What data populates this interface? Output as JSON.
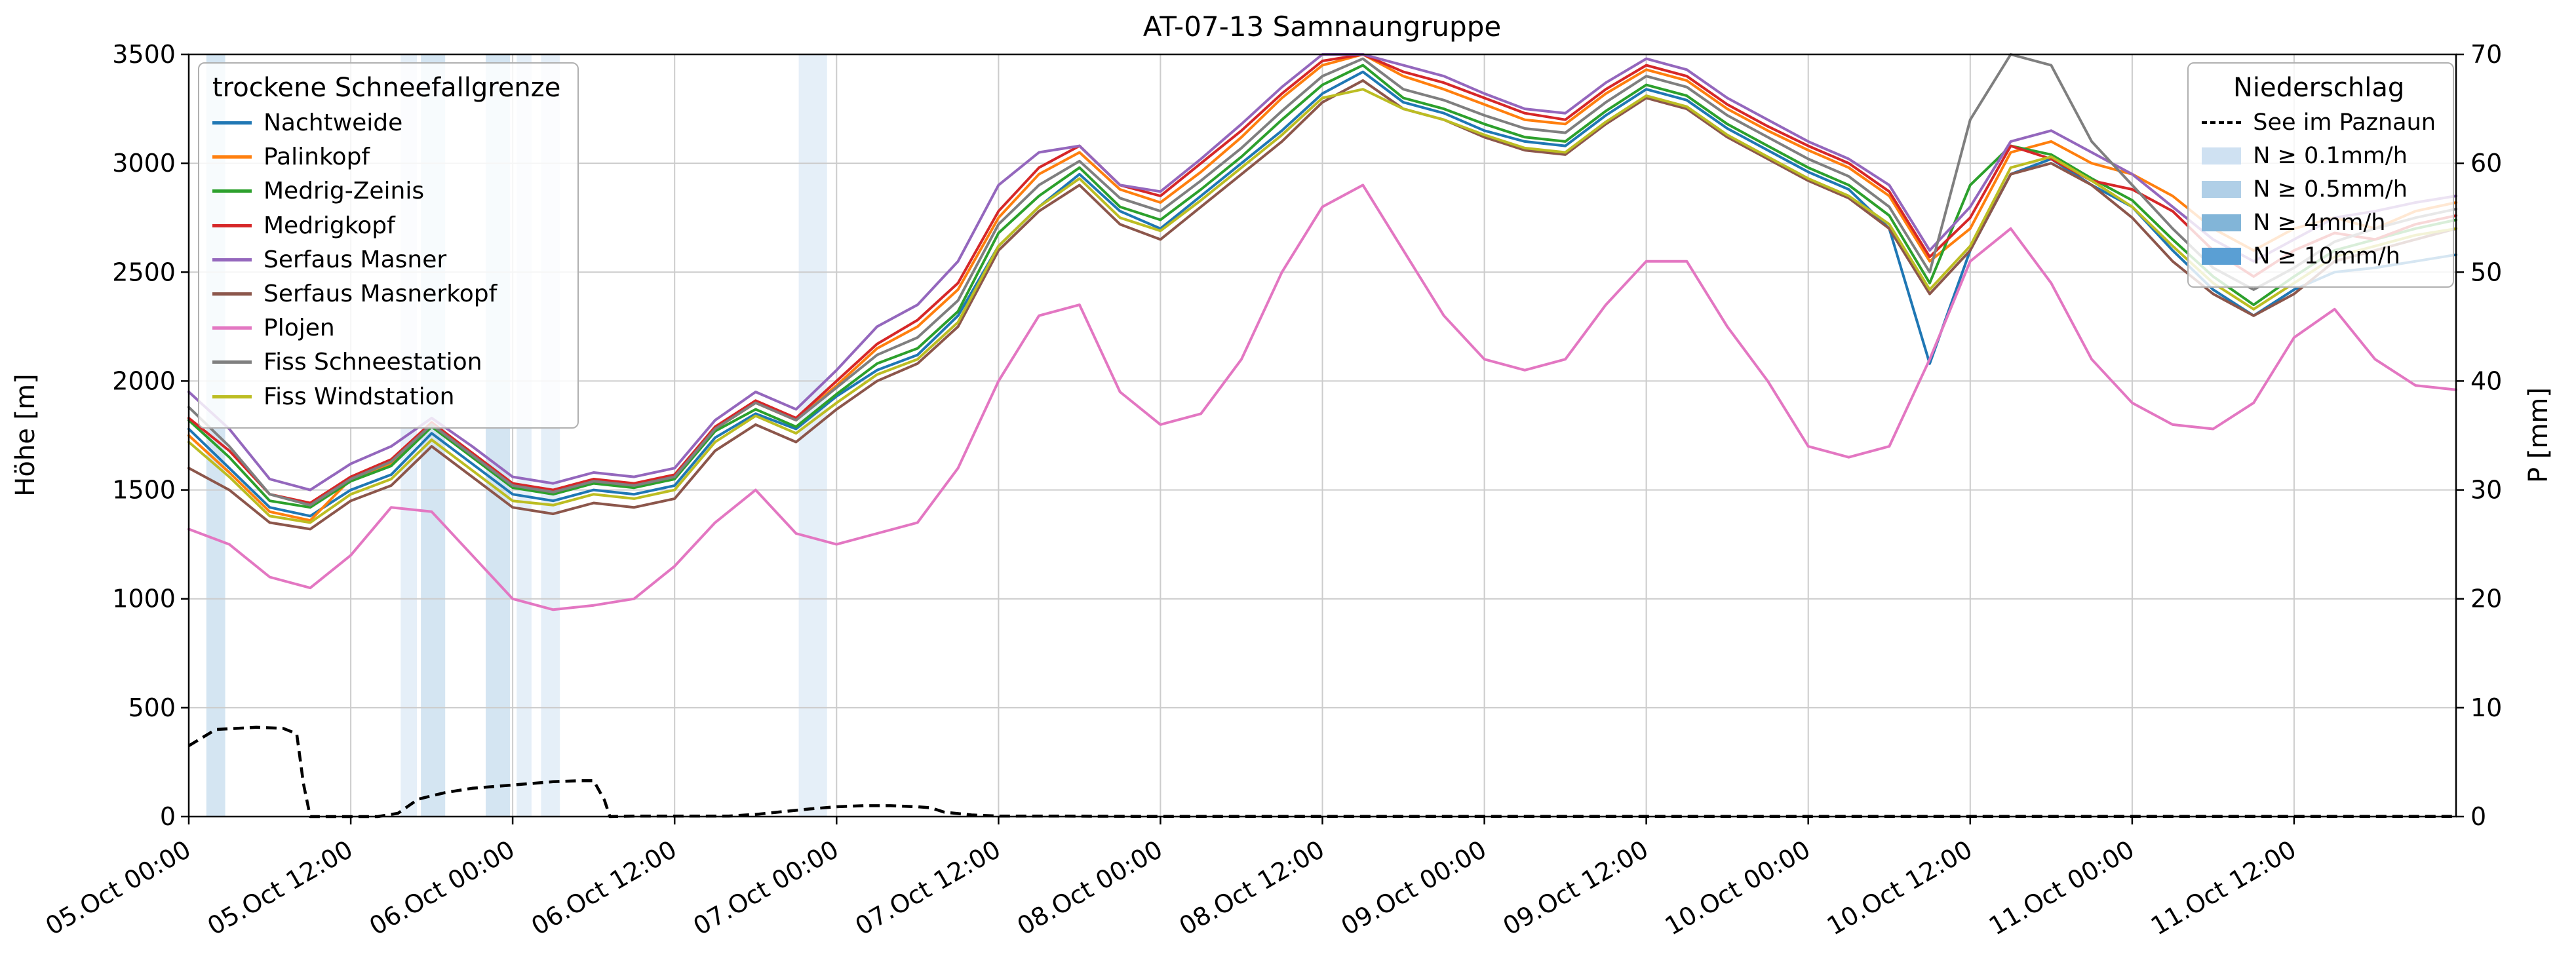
{
  "chart_data": {
    "type": "line",
    "title": "AT-07-13 Samnaungruppe",
    "xlabel": "",
    "ylabel_left": "Höhe [m]",
    "ylabel_right": "P [mm]",
    "ylim_left": [
      0,
      3500
    ],
    "ylim_right": [
      0,
      70
    ],
    "xlim_hours": [
      0,
      168
    ],
    "grid": true,
    "legend_left_title": "trockene Schneefallgrenze",
    "legend_right_title": "Niederschlag",
    "x_ticks": [
      {
        "hour": 0,
        "label": "05.Oct 00:00"
      },
      {
        "hour": 12,
        "label": "05.Oct 12:00"
      },
      {
        "hour": 24,
        "label": "06.Oct 00:00"
      },
      {
        "hour": 36,
        "label": "06.Oct 12:00"
      },
      {
        "hour": 48,
        "label": "07.Oct 00:00"
      },
      {
        "hour": 60,
        "label": "07.Oct 12:00"
      },
      {
        "hour": 72,
        "label": "08.Oct 00:00"
      },
      {
        "hour": 84,
        "label": "08.Oct 12:00"
      },
      {
        "hour": 96,
        "label": "09.Oct 00:00"
      },
      {
        "hour": 108,
        "label": "09.Oct 12:00"
      },
      {
        "hour": 120,
        "label": "10.Oct 00:00"
      },
      {
        "hour": 132,
        "label": "10.Oct 12:00"
      },
      {
        "hour": 144,
        "label": "11.Oct 00:00"
      },
      {
        "hour": 156,
        "label": "11.Oct 12:00"
      }
    ],
    "y_ticks_left": [
      0,
      500,
      1000,
      1500,
      2000,
      2500,
      3000,
      3500
    ],
    "y_ticks_right": [
      0,
      10,
      20,
      30,
      40,
      50,
      60,
      70
    ],
    "sample_step_hours": 3,
    "series": [
      {
        "name": "Nachtweide",
        "color": "#1f77b4",
        "values": [
          1780,
          1600,
          1420,
          1380,
          1500,
          1570,
          1760,
          1620,
          1480,
          1450,
          1500,
          1480,
          1520,
          1740,
          1850,
          1780,
          1930,
          2050,
          2120,
          2300,
          2620,
          2800,
          2950,
          2780,
          2700,
          2850,
          3000,
          3150,
          3320,
          3420,
          3280,
          3230,
          3150,
          3100,
          3080,
          3220,
          3340,
          3290,
          3160,
          3060,
          2960,
          2880,
          2700,
          2080,
          2600,
          2950,
          3020,
          2900,
          2800,
          2600,
          2420,
          2300,
          2420,
          2500,
          2520,
          2550,
          2580
        ]
      },
      {
        "name": "Palinkopf",
        "color": "#ff7f0e",
        "values": [
          1750,
          1580,
          1400,
          1360,
          1550,
          1620,
          1800,
          1660,
          1520,
          1490,
          1540,
          1520,
          1560,
          1780,
          1900,
          1820,
          1980,
          2150,
          2250,
          2420,
          2750,
          2950,
          3050,
          2880,
          2820,
          2960,
          3120,
          3300,
          3450,
          3500,
          3400,
          3340,
          3270,
          3200,
          3180,
          3320,
          3430,
          3380,
          3250,
          3150,
          3060,
          2980,
          2850,
          2550,
          2700,
          3050,
          3100,
          3000,
          2950,
          2850,
          2700,
          2600,
          2700,
          2750,
          2700,
          2780,
          2820
        ]
      },
      {
        "name": "Medrig-Zeinis",
        "color": "#2ca02c",
        "values": [
          1820,
          1650,
          1450,
          1420,
          1540,
          1610,
          1790,
          1650,
          1510,
          1480,
          1530,
          1510,
          1550,
          1770,
          1870,
          1790,
          1940,
          2080,
          2150,
          2320,
          2680,
          2850,
          2980,
          2800,
          2740,
          2880,
          3030,
          3200,
          3360,
          3450,
          3300,
          3250,
          3180,
          3120,
          3100,
          3240,
          3360,
          3310,
          3180,
          3080,
          2980,
          2900,
          2760,
          2450,
          2900,
          3080,
          3040,
          2930,
          2830,
          2650,
          2480,
          2350,
          2480,
          2600,
          2650,
          2700,
          2740
        ]
      },
      {
        "name": "Medrigkopf",
        "color": "#d62728",
        "values": [
          1830,
          1680,
          1480,
          1440,
          1560,
          1640,
          1810,
          1670,
          1530,
          1500,
          1550,
          1530,
          1570,
          1790,
          1910,
          1830,
          2000,
          2170,
          2280,
          2450,
          2780,
          2980,
          3080,
          2900,
          2850,
          3000,
          3150,
          3320,
          3470,
          3500,
          3420,
          3370,
          3300,
          3230,
          3200,
          3340,
          3450,
          3400,
          3270,
          3170,
          3080,
          3000,
          2870,
          2570,
          2750,
          3080,
          3020,
          2920,
          2880,
          2780,
          2600,
          2480,
          2600,
          2680,
          2650,
          2720,
          2760
        ]
      },
      {
        "name": "Serfaus Masner",
        "color": "#9467bd",
        "values": [
          1950,
          1780,
          1550,
          1500,
          1620,
          1700,
          1830,
          1700,
          1560,
          1530,
          1580,
          1560,
          1600,
          1820,
          1950,
          1870,
          2050,
          2250,
          2350,
          2550,
          2900,
          3050,
          3080,
          2900,
          2870,
          3020,
          3180,
          3350,
          3500,
          3500,
          3450,
          3400,
          3320,
          3250,
          3230,
          3370,
          3480,
          3430,
          3300,
          3200,
          3100,
          3020,
          2900,
          2600,
          2800,
          3100,
          3150,
          3050,
          2950,
          2800,
          2650,
          2550,
          2650,
          2750,
          2780,
          2820,
          2850
        ]
      },
      {
        "name": "Serfaus Masnerkopf",
        "color": "#8c564b",
        "values": [
          1600,
          1500,
          1350,
          1320,
          1450,
          1520,
          1700,
          1560,
          1420,
          1390,
          1440,
          1420,
          1460,
          1680,
          1800,
          1720,
          1870,
          2000,
          2080,
          2250,
          2600,
          2780,
          2900,
          2720,
          2650,
          2800,
          2950,
          3100,
          3280,
          3380,
          3250,
          3200,
          3120,
          3060,
          3040,
          3180,
          3300,
          3250,
          3120,
          3020,
          2920,
          2840,
          2700,
          2400,
          2600,
          2950,
          3000,
          2900,
          2750,
          2550,
          2400,
          2300,
          2400,
          2550,
          2600,
          2650,
          2700
        ]
      },
      {
        "name": "Plojen",
        "color": "#e377c2",
        "values": [
          1320,
          1250,
          1100,
          1050,
          1200,
          1420,
          1400,
          1200,
          1000,
          950,
          970,
          1000,
          1150,
          1350,
          1500,
          1300,
          1250,
          1300,
          1350,
          1600,
          2000,
          2300,
          2350,
          1950,
          1800,
          1850,
          2100,
          2500,
          2800,
          2900,
          2600,
          2300,
          2100,
          2050,
          2100,
          2350,
          2550,
          2550,
          2250,
          2000,
          1700,
          1650,
          1700,
          2100,
          2550,
          2700,
          2450,
          2100,
          1900,
          1800,
          1780,
          1900,
          2200,
          2330,
          2100,
          1980,
          1960
        ]
      },
      {
        "name": "Fiss Schneestation",
        "color": "#7f7f7f",
        "values": [
          1880,
          1700,
          1480,
          1430,
          1550,
          1630,
          1800,
          1660,
          1520,
          1490,
          1540,
          1520,
          1560,
          1780,
          1900,
          1820,
          1970,
          2120,
          2200,
          2370,
          2720,
          2900,
          3010,
          2840,
          2780,
          2920,
          3070,
          3240,
          3400,
          3480,
          3340,
          3290,
          3220,
          3160,
          3140,
          3280,
          3400,
          3350,
          3220,
          3120,
          3020,
          2940,
          2800,
          2500,
          3200,
          3500,
          3450,
          3100,
          2900,
          2700,
          2520,
          2420,
          2520,
          2640,
          2700,
          2750,
          2790
        ]
      },
      {
        "name": "Fiss Windstation",
        "color": "#bcbd22",
        "values": [
          1720,
          1560,
          1380,
          1350,
          1480,
          1550,
          1730,
          1590,
          1450,
          1430,
          1480,
          1460,
          1500,
          1720,
          1840,
          1760,
          1900,
          2030,
          2100,
          2270,
          2620,
          2800,
          2930,
          2750,
          2690,
          2830,
          2980,
          3130,
          3300,
          3340,
          3250,
          3200,
          3130,
          3070,
          3050,
          3190,
          3310,
          3260,
          3130,
          3030,
          2930,
          2850,
          2720,
          2420,
          2620,
          2980,
          3030,
          2920,
          2800,
          2620,
          2450,
          2330,
          2450,
          2570,
          2620,
          2670,
          2700
        ]
      }
    ],
    "precip_line": {
      "name": "See im Paznaun",
      "color": "#000000",
      "dashed": true,
      "x": [
        0,
        2,
        5,
        7,
        8,
        8.5,
        9,
        14,
        15.5,
        17,
        19,
        21,
        24,
        27,
        29,
        30,
        30.8,
        31.2,
        33,
        40,
        42,
        44,
        46,
        48,
        50,
        52,
        54,
        55,
        56,
        58,
        60,
        64,
        70,
        168
      ],
      "y": [
        6.5,
        8,
        8.2,
        8.1,
        7.6,
        3,
        0,
        0,
        0.3,
        1.6,
        2.2,
        2.6,
        2.9,
        3.2,
        3.3,
        3.3,
        1.5,
        0,
        0.05,
        0.05,
        0.2,
        0.45,
        0.7,
        0.9,
        1.0,
        1.0,
        0.9,
        0.8,
        0.4,
        0.15,
        0.05,
        0.05,
        0.02,
        0.02
      ]
    },
    "precip_bands": {
      "levels": [
        {
          "label": "N ≥ 0.1mm/h",
          "color": "#cfe1f2"
        },
        {
          "label": "N ≥ 0.5mm/h",
          "color": "#b0cfe7"
        },
        {
          "label": "N ≥ 4mm/h",
          "color": "#82b5d8"
        },
        {
          "label": "N ≥ 10mm/h",
          "color": "#5a9fd4"
        }
      ],
      "spans": [
        {
          "start": 1.3,
          "end": 2.7,
          "level": 1
        },
        {
          "start": 15.7,
          "end": 16.9,
          "level": 0
        },
        {
          "start": 17.2,
          "end": 19.0,
          "level": 1
        },
        {
          "start": 22.0,
          "end": 23.8,
          "level": 1
        },
        {
          "start": 24.3,
          "end": 25.4,
          "level": 0
        },
        {
          "start": 26.1,
          "end": 27.5,
          "level": 0
        },
        {
          "start": 45.2,
          "end": 47.3,
          "level": 0
        }
      ]
    }
  }
}
